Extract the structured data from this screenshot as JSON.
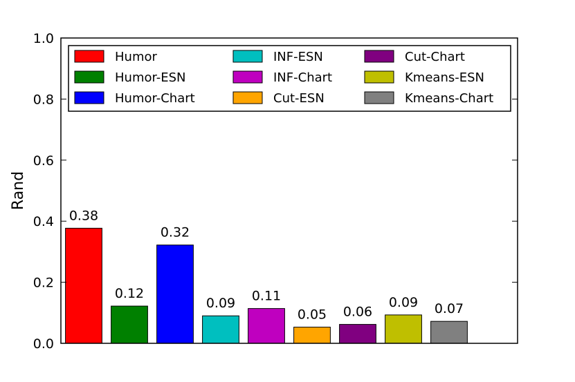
{
  "chart_data": {
    "type": "bar",
    "categories": [
      "Humor",
      "Humor-ESN",
      "Humor-Chart",
      "INF-ESN",
      "INF-Chart",
      "Cut-ESN",
      "Cut-Chart",
      "Kmeans-ESN",
      "Kmeans-Chart"
    ],
    "values": [
      0.377,
      0.122,
      0.322,
      0.09,
      0.114,
      0.053,
      0.062,
      0.093,
      0.072
    ],
    "value_labels": [
      "0.38",
      "0.12",
      "0.32",
      "0.09",
      "0.11",
      "0.05",
      "0.06",
      "0.09",
      "0.07"
    ],
    "colors": [
      "#ff0000",
      "#008000",
      "#0000ff",
      "#00bfbf",
      "#bf00bf",
      "#ffa500",
      "#800080",
      "#bfbf00",
      "#808080"
    ],
    "title": "",
    "xlabel": "",
    "ylabel": "Rand",
    "ylim": [
      0,
      1.0
    ],
    "yticks": [
      "0.0",
      "0.2",
      "0.4",
      "0.6",
      "0.8",
      "1.0"
    ],
    "grid": false,
    "legend_position": "top",
    "legend_columns": 3
  }
}
